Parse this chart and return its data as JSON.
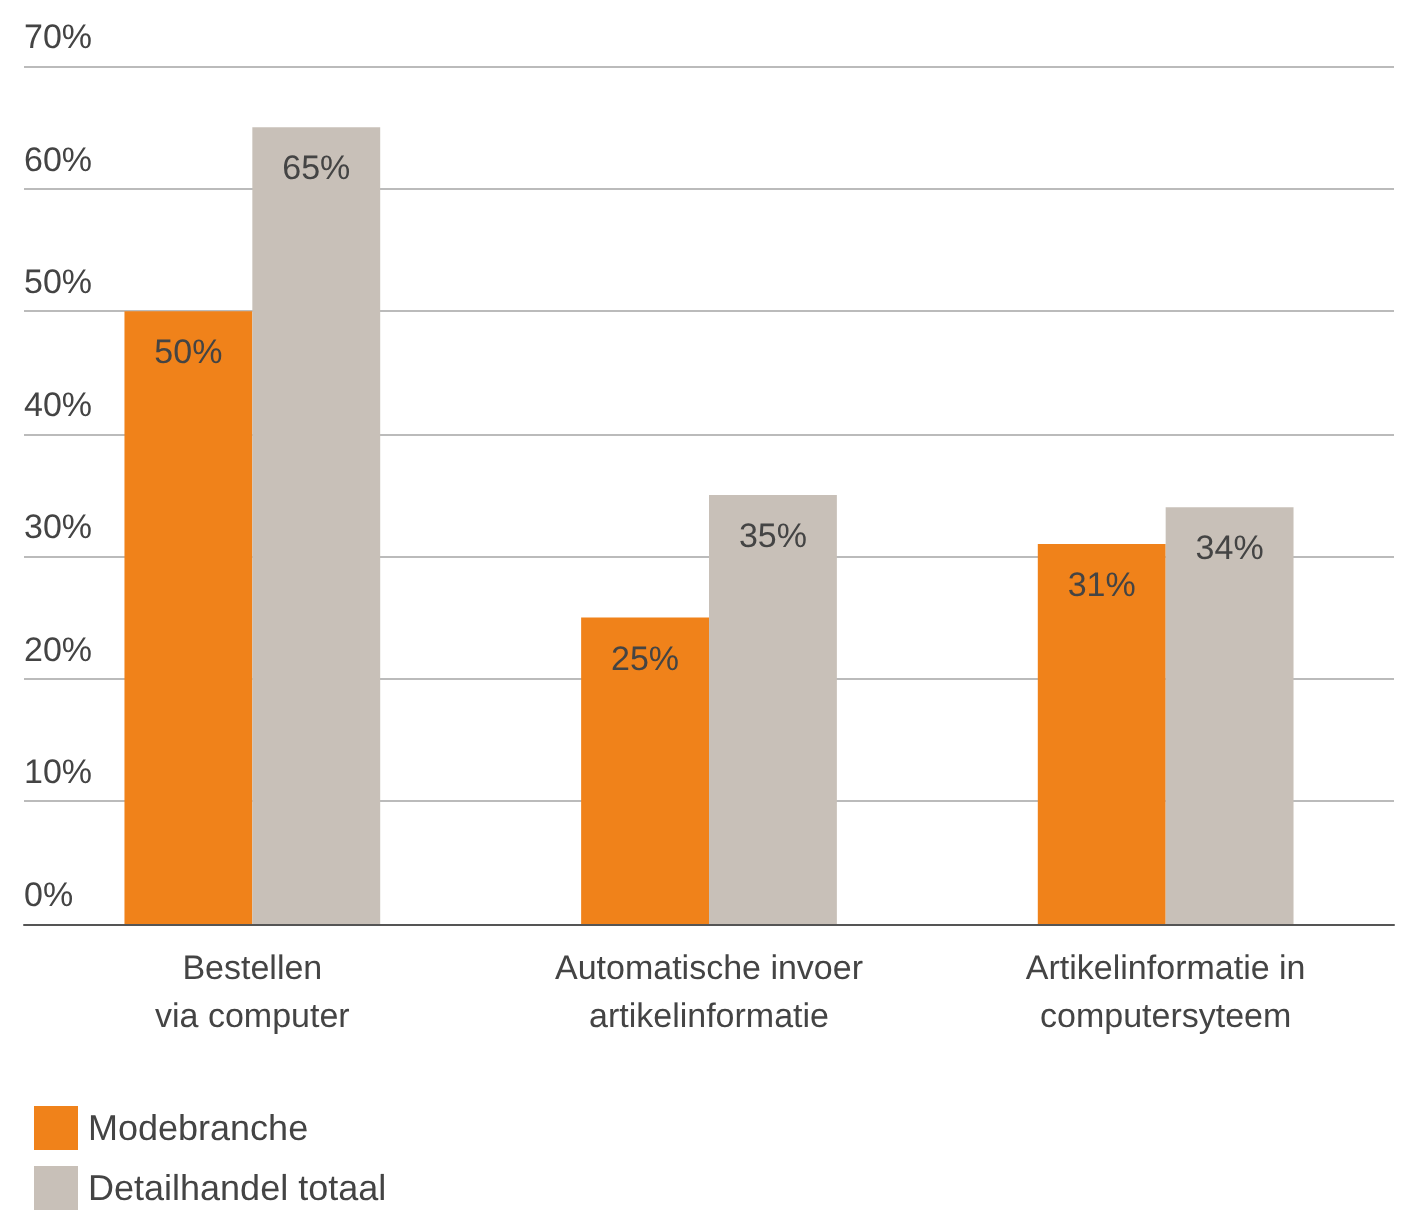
{
  "chart_data": {
    "type": "bar",
    "categories": [
      "Bestellen\nvia computer",
      "Automatische invoer\nartikelinformatie",
      "Artikelinformatie in\ncomputersyteem"
    ],
    "series": [
      {
        "name": "Modebranche",
        "color": "#f0821a",
        "values": [
          50,
          25,
          31
        ],
        "value_labels": [
          "50%",
          "25%",
          "31%"
        ]
      },
      {
        "name": "Detailhandel totaal",
        "color": "#c8c0b8",
        "values": [
          65,
          35,
          34
        ],
        "value_labels": [
          "65%",
          "35%",
          "34%"
        ]
      }
    ],
    "ylim": [
      0,
      70
    ],
    "yticks": [
      {
        "value": 0,
        "label": "0%"
      },
      {
        "value": 10,
        "label": "10%"
      },
      {
        "value": 20,
        "label": "20%"
      },
      {
        "value": 30,
        "label": "30%"
      },
      {
        "value": 40,
        "label": "40%"
      },
      {
        "value": 50,
        "label": "50%"
      },
      {
        "value": 60,
        "label": "60%"
      },
      {
        "value": 70,
        "label": "70%"
      }
    ],
    "grid": "y",
    "legend": "bottom left"
  }
}
